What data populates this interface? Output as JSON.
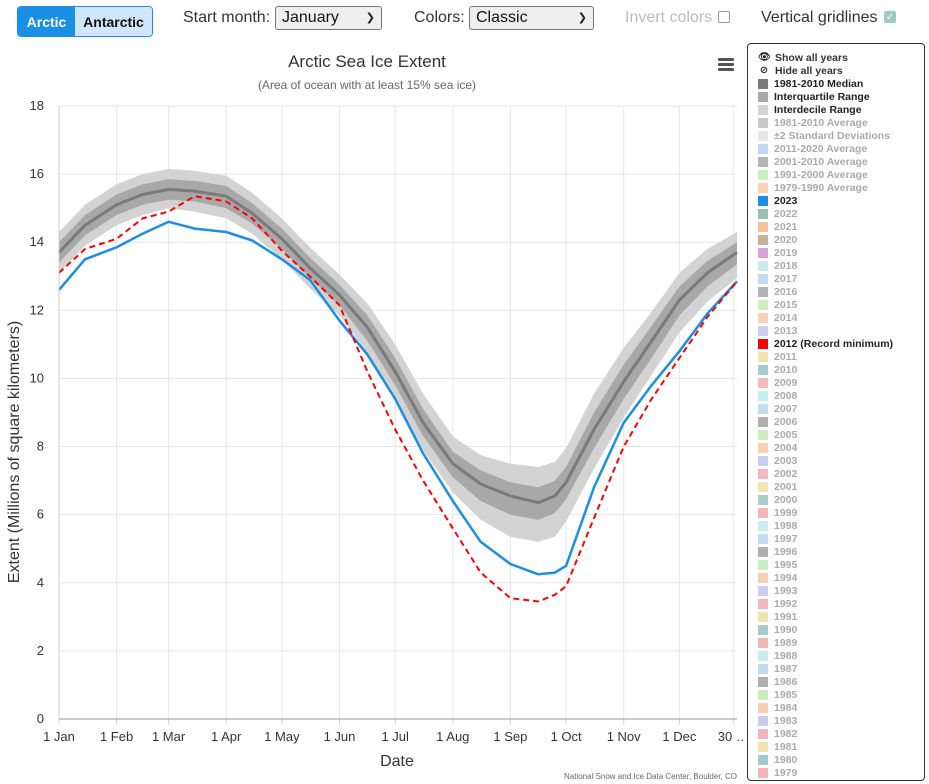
{
  "toolbar": {
    "hemisphere": {
      "active": "Arctic",
      "inactive": "Antarctic"
    },
    "start_month_label": "Start month:",
    "start_month_value": "January",
    "colors_label": "Colors:",
    "colors_value": "Classic",
    "invert_label": "Invert colors",
    "invert_checked": false,
    "gridlines_label": "Vertical gridlines",
    "gridlines_checked": true
  },
  "credit": "National Snow and Ice Data Center, Boulder, CO",
  "legend": {
    "show_all": "Show all years",
    "hide_all": "Hide all years",
    "items": [
      {
        "label": "1981-2010 Median",
        "color": "#7a7a7a",
        "active": true
      },
      {
        "label": "Interquartile Range",
        "color": "#a8a8a8",
        "active": true
      },
      {
        "label": "Interdecile Range",
        "color": "#d3d3d3",
        "active": true
      },
      {
        "label": "1981-2010 Average",
        "color": "#c8c8c8",
        "active": false
      },
      {
        "label": "±2 Standard Deviations",
        "color": "#e6e6e6",
        "active": false
      },
      {
        "label": "2011-2020 Average",
        "color": "#bcd9f5",
        "active": false
      },
      {
        "label": "2001-2010 Average",
        "color": "#b4b4b4",
        "active": false
      },
      {
        "label": "1991-2000 Average",
        "color": "#ccefc4",
        "active": false
      },
      {
        "label": "1979-1990 Average",
        "color": "#fad3b4",
        "active": false
      },
      {
        "label": "2023",
        "color": "#1a8fe6",
        "active": true
      },
      {
        "label": "2022",
        "color": "#99bfb0",
        "active": false
      },
      {
        "label": "2021",
        "color": "#f5c195",
        "active": false
      },
      {
        "label": "2020",
        "color": "#c7b299",
        "active": false
      },
      {
        "label": "2019",
        "color": "#d9a3d9",
        "active": false
      },
      {
        "label": "2018",
        "color": "#c7ecec",
        "active": false
      },
      {
        "label": "2017",
        "color": "#c3dbf5",
        "active": false
      },
      {
        "label": "2016",
        "color": "#b3b3b3",
        "active": false
      },
      {
        "label": "2015",
        "color": "#cdf0c0",
        "active": false
      },
      {
        "label": "2014",
        "color": "#f9d1b6",
        "active": false
      },
      {
        "label": "2013",
        "color": "#cfcdf0",
        "active": false
      },
      {
        "label": "2012 (Record minimum)",
        "color": "#ff0000",
        "active": true
      },
      {
        "label": "2011",
        "color": "#f4e3ae",
        "active": false
      },
      {
        "label": "2010",
        "color": "#a3cccc",
        "active": false
      },
      {
        "label": "2009",
        "color": "#f7b9b9",
        "active": false
      },
      {
        "label": "2008",
        "color": "#c7eeee",
        "active": false
      },
      {
        "label": "2007",
        "color": "#c2dcf4",
        "active": false
      },
      {
        "label": "2006",
        "color": "#b0b0b0",
        "active": false
      },
      {
        "label": "2005",
        "color": "#ccefc2",
        "active": false
      },
      {
        "label": "2004",
        "color": "#f9d0b5",
        "active": false
      },
      {
        "label": "2003",
        "color": "#cecdf1",
        "active": false
      },
      {
        "label": "2002",
        "color": "#f5b8c2",
        "active": false
      },
      {
        "label": "2001",
        "color": "#f4e5b0",
        "active": false
      },
      {
        "label": "2000",
        "color": "#a6cccc",
        "active": false
      },
      {
        "label": "1999",
        "color": "#f7b6b6",
        "active": false
      },
      {
        "label": "1998",
        "color": "#c9eeee",
        "active": false
      },
      {
        "label": "1997",
        "color": "#c4dbf4",
        "active": false
      },
      {
        "label": "1996",
        "color": "#afafaf",
        "active": false
      },
      {
        "label": "1995",
        "color": "#cbefc1",
        "active": false
      },
      {
        "label": "1994",
        "color": "#f9cfb3",
        "active": false
      },
      {
        "label": "1993",
        "color": "#cdcbf0",
        "active": false
      },
      {
        "label": "1992",
        "color": "#f4b6c1",
        "active": false
      },
      {
        "label": "1991",
        "color": "#f3e4af",
        "active": false
      },
      {
        "label": "1990",
        "color": "#a5cbcb",
        "active": false
      },
      {
        "label": "1989",
        "color": "#f6b5b5",
        "active": false
      },
      {
        "label": "1988",
        "color": "#c8eded",
        "active": false
      },
      {
        "label": "1987",
        "color": "#c3daf3",
        "active": false
      },
      {
        "label": "1986",
        "color": "#aeaeae",
        "active": false
      },
      {
        "label": "1985",
        "color": "#caeec0",
        "active": false
      },
      {
        "label": "1984",
        "color": "#f8ceb2",
        "active": false
      },
      {
        "label": "1983",
        "color": "#cccaef",
        "active": false
      },
      {
        "label": "1982",
        "color": "#f3b5c0",
        "active": false
      },
      {
        "label": "1981",
        "color": "#f2e3ae",
        "active": false
      },
      {
        "label": "1980",
        "color": "#a4caca",
        "active": false
      },
      {
        "label": "1979",
        "color": "#f5b4b4",
        "active": false
      }
    ]
  },
  "chart_data": {
    "type": "line",
    "title": "Arctic Sea Ice Extent",
    "subtitle": "(Area of ocean with at least 15% sea ice)",
    "xlabel": "Date",
    "ylabel": "Extent (Millions of square kilometers)",
    "ylim": [
      0,
      18
    ],
    "yticks": [
      0,
      2,
      4,
      6,
      8,
      10,
      12,
      14,
      16,
      18
    ],
    "xlim_days": [
      1,
      366
    ],
    "xticks": [
      {
        "day": 1,
        "label": "1 Jan"
      },
      {
        "day": 32,
        "label": "1 Feb"
      },
      {
        "day": 60,
        "label": "1 Mar"
      },
      {
        "day": 91,
        "label": "1 Apr"
      },
      {
        "day": 121,
        "label": "1 May"
      },
      {
        "day": 152,
        "label": "1 Jun"
      },
      {
        "day": 182,
        "label": "1 Jul"
      },
      {
        "day": 213,
        "label": "1 Aug"
      },
      {
        "day": 244,
        "label": "1 Sep"
      },
      {
        "day": 274,
        "label": "1 Oct"
      },
      {
        "day": 305,
        "label": "1 Nov"
      },
      {
        "day": 335,
        "label": "1 Dec"
      },
      {
        "day": 364,
        "label": "30 …"
      }
    ],
    "vertical_gridlines": true,
    "x": [
      1,
      15,
      32,
      46,
      60,
      74,
      91,
      105,
      121,
      136,
      152,
      167,
      182,
      197,
      213,
      228,
      244,
      259,
      268,
      274,
      289,
      305,
      320,
      335,
      350,
      366
    ],
    "series": [
      {
        "name": "1981-2010 Median",
        "style": "median",
        "color": "#7a7a7a",
        "values": [
          13.7,
          14.5,
          15.1,
          15.4,
          15.55,
          15.5,
          15.35,
          14.85,
          14.1,
          13.25,
          12.45,
          11.5,
          10.2,
          8.7,
          7.5,
          6.9,
          6.55,
          6.35,
          6.55,
          6.95,
          8.5,
          9.9,
          11.1,
          12.3,
          13.1,
          13.7
        ]
      },
      {
        "name": "Interquartile Range",
        "style": "band",
        "color": "#a8a8a8",
        "low": [
          13.4,
          14.2,
          14.8,
          15.1,
          15.25,
          15.2,
          15.0,
          14.55,
          13.8,
          12.95,
          12.15,
          11.1,
          9.8,
          8.3,
          7.1,
          6.4,
          6.0,
          5.85,
          6.05,
          6.45,
          7.95,
          9.4,
          10.6,
          11.85,
          12.7,
          13.35
        ],
        "high": [
          14.0,
          14.8,
          15.4,
          15.7,
          15.85,
          15.8,
          15.65,
          15.15,
          14.4,
          13.55,
          12.75,
          11.85,
          10.6,
          9.1,
          7.85,
          7.3,
          6.95,
          6.8,
          7.0,
          7.4,
          9.0,
          10.4,
          11.55,
          12.7,
          13.45,
          14.0
        ]
      },
      {
        "name": "Interdecile Range",
        "style": "band",
        "color": "#d3d3d3",
        "low": [
          13.1,
          13.9,
          14.5,
          14.8,
          15.0,
          14.9,
          14.7,
          14.25,
          13.5,
          12.65,
          11.85,
          10.75,
          9.4,
          7.9,
          6.65,
          5.85,
          5.35,
          5.2,
          5.35,
          5.8,
          7.35,
          8.85,
          10.1,
          11.35,
          12.25,
          12.95
        ],
        "high": [
          14.3,
          15.1,
          15.7,
          16.0,
          16.15,
          16.1,
          15.95,
          15.45,
          14.7,
          13.85,
          13.05,
          12.2,
          11.0,
          9.55,
          8.3,
          7.75,
          7.5,
          7.4,
          7.55,
          7.95,
          9.55,
          10.9,
          11.95,
          13.1,
          13.8,
          14.3
        ]
      },
      {
        "name": "2023",
        "style": "solid",
        "color": "#1a8fe6",
        "values": [
          12.6,
          13.5,
          13.85,
          14.25,
          14.6,
          14.4,
          14.3,
          14.05,
          13.5,
          12.9,
          11.7,
          10.7,
          9.4,
          7.8,
          6.4,
          5.2,
          4.55,
          4.25,
          4.3,
          4.5,
          6.8,
          8.7,
          9.8,
          10.8,
          11.9,
          12.85
        ]
      },
      {
        "name": "2012 (Record minimum)",
        "style": "dashed",
        "color": "#ff0000",
        "values": [
          13.1,
          13.8,
          14.1,
          14.7,
          14.9,
          15.35,
          15.2,
          14.7,
          13.75,
          13.0,
          12.15,
          10.2,
          8.5,
          7.0,
          5.6,
          4.3,
          3.55,
          3.45,
          3.65,
          3.9,
          5.9,
          8.0,
          9.4,
          10.6,
          11.8,
          12.85
        ]
      }
    ]
  }
}
